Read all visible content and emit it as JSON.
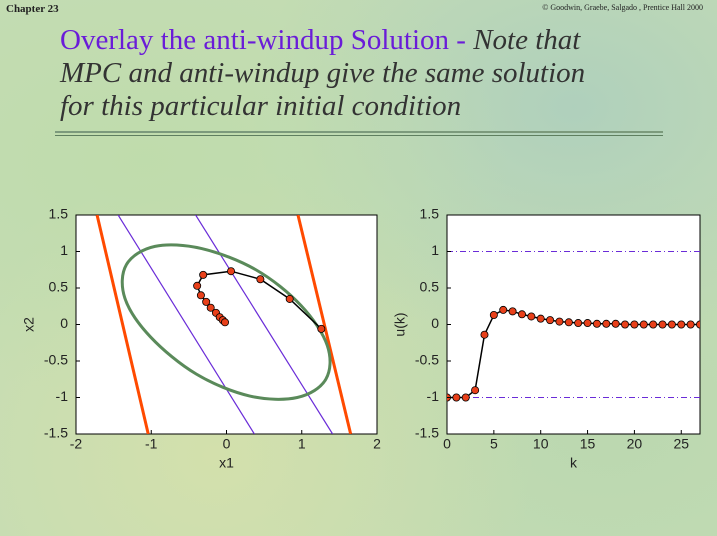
{
  "header": {
    "chapter": "Chapter 23",
    "copyright": "© Goodwin, Graebe, Salgado , Prentice Hall 2000",
    "title": "Overlay the anti-windup Solution -",
    "note_lines": [
      "Note that",
      "MPC and anti-windup give the same solution",
      "for this particular initial condition"
    ]
  },
  "chart_data": [
    {
      "type": "line",
      "xlabel": "x1",
      "ylabel": "x2",
      "xlim": [
        -2,
        2
      ],
      "ylim": [
        -1.5,
        1.5
      ],
      "xticks": [
        -2,
        -1,
        0,
        1,
        2
      ],
      "yticks": [
        -1.5,
        -1,
        -0.5,
        0,
        0.5,
        1,
        1.5
      ],
      "series": [
        {
          "color": "#ff4a00",
          "width": 3,
          "x": [
            -1.72,
            -1.04
          ],
          "y": [
            1.5,
            -1.5
          ]
        },
        {
          "color": "#ff4a00",
          "width": 3,
          "x": [
            0.95,
            1.65
          ],
          "y": [
            1.5,
            -1.5
          ]
        },
        {
          "color": "#6a2cd8",
          "width": 1.2,
          "x": [
            -1.44,
            0.37
          ],
          "y": [
            1.5,
            -1.5
          ]
        },
        {
          "color": "#6a2cd8",
          "width": 1.2,
          "x": [
            -0.41,
            1.41
          ],
          "y": [
            1.5,
            -1.5
          ]
        },
        {
          "color": "#5a8a5a",
          "width": 3,
          "closed": true,
          "x": [
            1.32,
            0.94,
            0.31,
            -0.4,
            -1.01,
            -1.35,
            -1.33,
            -0.95,
            -0.33,
            0.39,
            0.99,
            1.34
          ],
          "y": [
            -0.75,
            -1.0,
            -0.98,
            -0.68,
            -0.17,
            0.36,
            0.82,
            1.07,
            1.04,
            0.75,
            0.26,
            -0.29
          ]
        },
        {
          "color": "#000000",
          "width": 1.5,
          "markers": true,
          "marker_color": "#e8401a",
          "x": [
            1.26,
            0.84,
            0.45,
            0.06,
            -0.31,
            -0.39,
            -0.34,
            -0.27,
            -0.21,
            -0.14,
            -0.09,
            -0.05,
            -0.02
          ],
          "y": [
            -0.06,
            0.35,
            0.62,
            0.73,
            0.68,
            0.53,
            0.4,
            0.31,
            0.23,
            0.16,
            0.1,
            0.06,
            0.03
          ]
        }
      ]
    },
    {
      "type": "line",
      "xlabel": "k",
      "ylabel": "u(k)",
      "xlim": [
        0,
        27
      ],
      "ylim": [
        -1.5,
        1.5
      ],
      "xticks": [
        0,
        5,
        10,
        15,
        20,
        25
      ],
      "yticks": [
        -1.5,
        -1,
        -0.5,
        0,
        0.5,
        1,
        1.5
      ],
      "series": [
        {
          "color": "#6a2cd8",
          "width": 1,
          "dashed": true,
          "x": [
            0,
            27
          ],
          "y": [
            1,
            1
          ]
        },
        {
          "color": "#6a2cd8",
          "width": 1,
          "dashed": true,
          "x": [
            0,
            27
          ],
          "y": [
            -1,
            -1
          ]
        },
        {
          "color": "#000000",
          "width": 1.5,
          "markers": true,
          "marker_color": "#e8401a",
          "x": [
            0,
            1,
            2,
            3,
            4,
            5,
            6,
            7,
            8,
            9,
            10,
            11,
            12,
            13,
            14,
            15,
            16,
            17,
            18,
            19,
            20,
            21,
            22,
            23,
            24,
            25,
            26,
            27
          ],
          "y": [
            -1,
            -1,
            -1,
            -0.9,
            -0.14,
            0.13,
            0.2,
            0.18,
            0.14,
            0.11,
            0.08,
            0.06,
            0.04,
            0.03,
            0.02,
            0.02,
            0.01,
            0.01,
            0.01,
            0,
            0,
            0,
            0,
            0,
            0,
            0,
            0,
            0
          ]
        }
      ]
    }
  ]
}
